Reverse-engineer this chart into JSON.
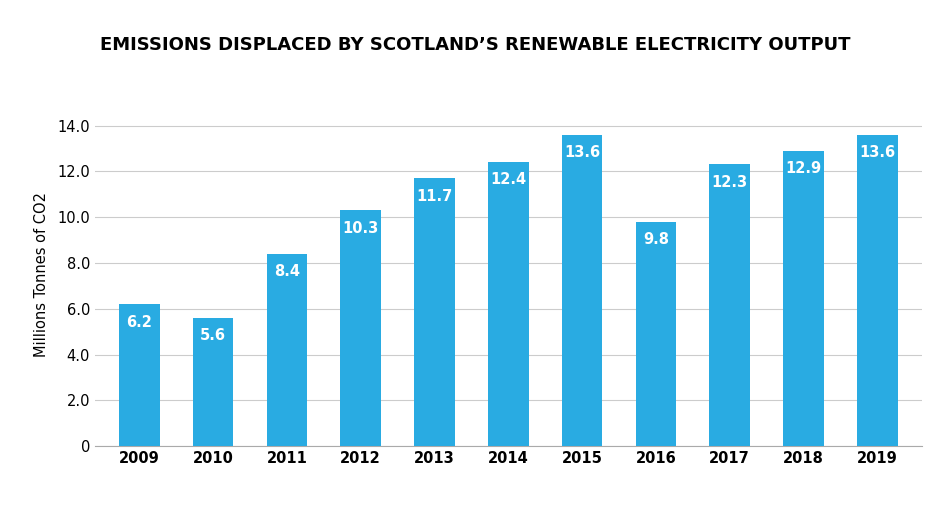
{
  "title": "EMISSIONS DISPLACED BY SCOTLAND’S RENEWABLE ELECTRICITY OUTPUT",
  "years": [
    "2009",
    "2010",
    "2011",
    "2012",
    "2013",
    "2014",
    "2015",
    "2016",
    "2017",
    "2018",
    "2019"
  ],
  "values": [
    6.2,
    5.6,
    8.4,
    10.3,
    11.7,
    12.4,
    13.6,
    9.8,
    12.3,
    12.9,
    13.6
  ],
  "bar_color": "#29ABE2",
  "ylabel": "Millions Tonnes of CO2",
  "ylim": [
    0,
    15.0
  ],
  "yticks": [
    0,
    2.0,
    4.0,
    6.0,
    8.0,
    10.0,
    12.0,
    14.0
  ],
  "ytick_labels": [
    "0",
    "2.0",
    "4.0",
    "6.0",
    "8.0",
    "10.0",
    "12.0",
    "14.0"
  ],
  "background_color": "#ffffff",
  "grid_color": "#cccccc",
  "label_color": "#ffffff",
  "title_fontsize": 13,
  "label_fontsize": 10.5,
  "axis_fontsize": 10.5,
  "bar_width": 0.55
}
